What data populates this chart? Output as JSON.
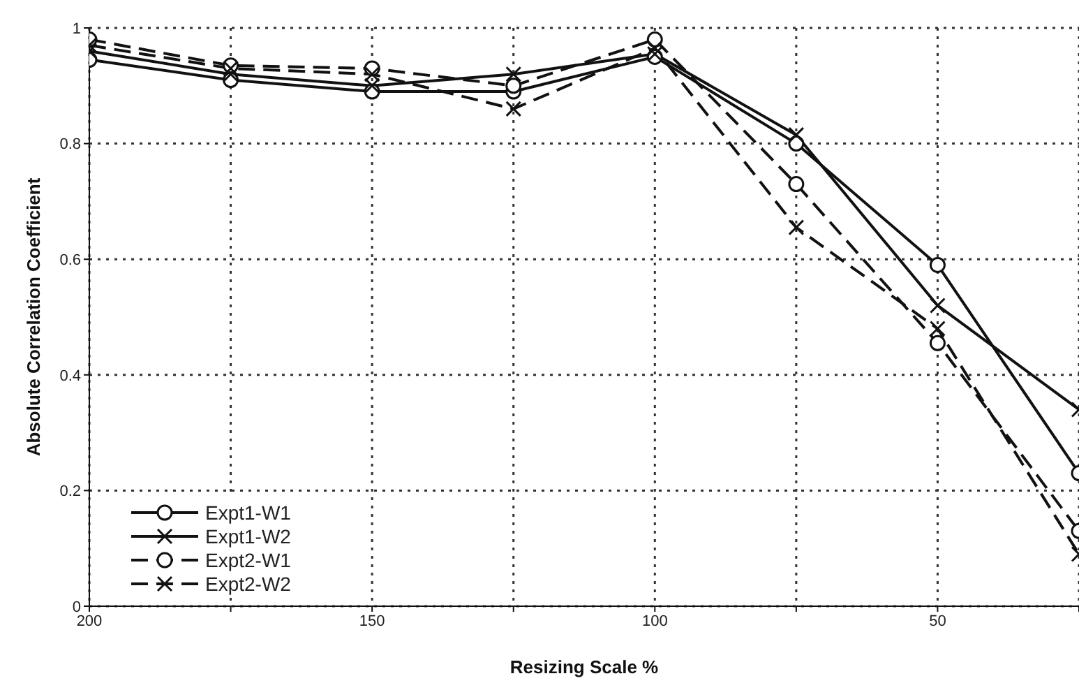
{
  "chart_data": {
    "type": "line",
    "xlabel": "Resizing Scale %",
    "ylabel": "Absolute Correlation Coefficient",
    "x": [
      200,
      175,
      150,
      125,
      100,
      75,
      50,
      25
    ],
    "series": [
      {
        "name": "Expt1-W1",
        "color": "#111111",
        "marker": "circle",
        "line_style": "solid",
        "values": [
          0.945,
          0.91,
          0.89,
          0.89,
          0.95,
          0.8,
          0.59,
          0.23
        ]
      },
      {
        "name": "Expt1-W2",
        "color": "#111111",
        "marker": "cross",
        "line_style": "solid",
        "values": [
          0.96,
          0.92,
          0.9,
          0.92,
          0.955,
          0.815,
          0.52,
          0.34
        ]
      },
      {
        "name": "Expt2-W1",
        "color": "#111111",
        "marker": "circle",
        "line_style": "dashed",
        "values": [
          0.98,
          0.935,
          0.93,
          0.9,
          0.98,
          0.73,
          0.455,
          0.13
        ]
      },
      {
        "name": "Expt2-W2",
        "color": "#111111",
        "marker": "cross",
        "line_style": "dashed",
        "values": [
          0.97,
          0.93,
          0.92,
          0.86,
          0.965,
          0.655,
          0.48,
          0.09
        ]
      }
    ],
    "xlim": [
      200,
      25
    ],
    "xticks": [
      200,
      {
        "value": 175,
        "label": null
      },
      150,
      {
        "value": 125,
        "label": null
      },
      100,
      {
        "value": 75,
        "label": null
      },
      50,
      {
        "value": 25,
        "label": null
      }
    ],
    "ylim": [
      0,
      1
    ],
    "yticks": [
      0,
      0.2,
      0.4,
      0.6,
      0.8,
      1
    ],
    "grid": true,
    "legend": "bottom left"
  }
}
